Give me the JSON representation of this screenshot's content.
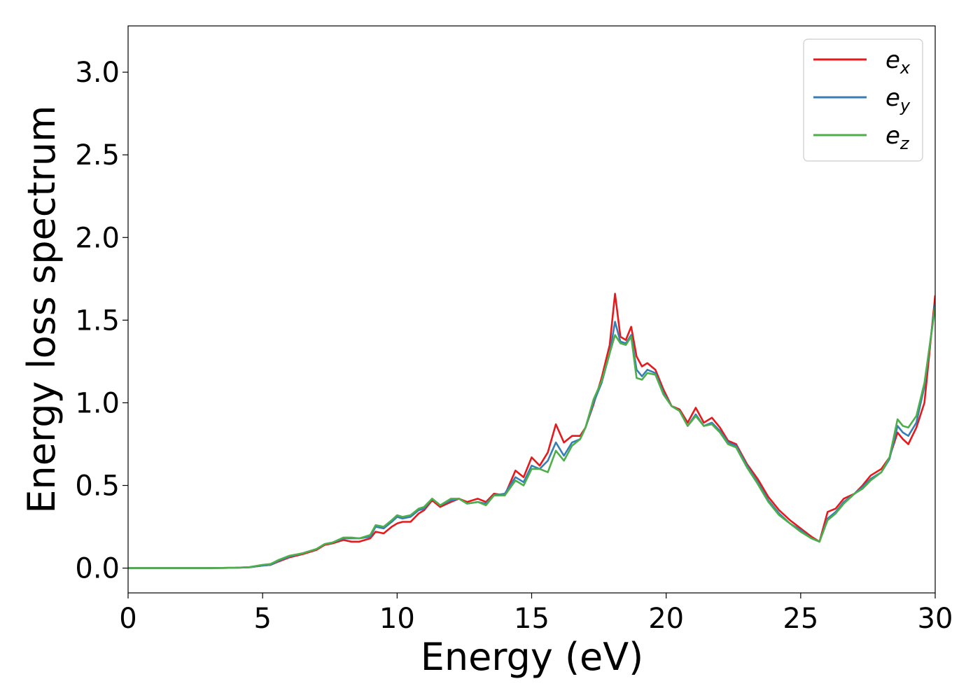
{
  "chart_data": {
    "type": "line",
    "xlabel": "Energy (eV)",
    "ylabel": "Energy loss spectrum",
    "xlim": [
      0,
      30
    ],
    "ylim": [
      -0.15,
      3.28
    ],
    "x_ticks": [
      "0",
      "5",
      "10",
      "15",
      "20",
      "25",
      "30"
    ],
    "y_ticks": [
      "0.0",
      "0.5",
      "1.0",
      "1.5",
      "2.0",
      "2.5",
      "3.0"
    ],
    "grid": false,
    "legend_position": "top-right",
    "x": [
      0,
      1,
      2,
      3,
      4,
      4.5,
      5,
      5.3,
      5.6,
      6,
      6.5,
      7,
      7.3,
      7.6,
      8,
      8.3,
      8.6,
      9,
      9.2,
      9.5,
      9.8,
      10,
      10.2,
      10.5,
      10.8,
      11,
      11.3,
      11.6,
      12,
      12.3,
      12.6,
      13,
      13.3,
      13.6,
      14,
      14.4,
      14.7,
      15,
      15.3,
      15.6,
      15.9,
      16.2,
      16.5,
      16.8,
      17,
      17.3,
      17.6,
      17.9,
      18.1,
      18.3,
      18.5,
      18.7,
      18.9,
      19.1,
      19.3,
      19.6,
      19.9,
      20.2,
      20.5,
      20.8,
      21.1,
      21.4,
      21.7,
      22,
      22.3,
      22.6,
      23,
      23.4,
      23.8,
      24.2,
      24.6,
      25,
      25.4,
      25.7,
      26,
      26.3,
      26.6,
      27,
      27.3,
      27.6,
      28,
      28.3,
      28.6,
      28.8,
      29,
      29.3,
      29.6,
      30
    ],
    "series": [
      {
        "name": "e_x",
        "label_base": "e",
        "label_sub": "x",
        "color": "#e41a1c",
        "values": [
          0,
          0,
          0,
          0,
          0.002,
          0.005,
          0.015,
          0.02,
          0.04,
          0.065,
          0.085,
          0.11,
          0.14,
          0.15,
          0.17,
          0.16,
          0.16,
          0.18,
          0.22,
          0.21,
          0.25,
          0.27,
          0.28,
          0.28,
          0.33,
          0.35,
          0.41,
          0.37,
          0.4,
          0.42,
          0.4,
          0.42,
          0.4,
          0.45,
          0.44,
          0.59,
          0.55,
          0.67,
          0.62,
          0.7,
          0.87,
          0.76,
          0.8,
          0.8,
          0.85,
          0.99,
          1.15,
          1.35,
          1.66,
          1.4,
          1.38,
          1.46,
          1.28,
          1.22,
          1.24,
          1.2,
          1.08,
          0.98,
          0.96,
          0.88,
          0.97,
          0.88,
          0.91,
          0.85,
          0.77,
          0.75,
          0.63,
          0.54,
          0.43,
          0.35,
          0.29,
          0.24,
          0.19,
          0.16,
          0.34,
          0.36,
          0.42,
          0.45,
          0.5,
          0.56,
          0.6,
          0.67,
          0.82,
          0.78,
          0.75,
          0.85,
          1.0,
          1.65
        ]
      },
      {
        "name": "e_y",
        "label_base": "e",
        "label_sub": "y",
        "color": "#377eb8",
        "values": [
          0,
          0,
          0,
          0,
          0.002,
          0.005,
          0.015,
          0.02,
          0.045,
          0.07,
          0.09,
          0.115,
          0.145,
          0.155,
          0.18,
          0.18,
          0.18,
          0.19,
          0.25,
          0.24,
          0.28,
          0.31,
          0.3,
          0.31,
          0.35,
          0.36,
          0.42,
          0.38,
          0.41,
          0.42,
          0.39,
          0.4,
          0.39,
          0.44,
          0.45,
          0.55,
          0.52,
          0.62,
          0.6,
          0.65,
          0.76,
          0.68,
          0.76,
          0.78,
          0.85,
          1.0,
          1.12,
          1.3,
          1.49,
          1.37,
          1.36,
          1.41,
          1.2,
          1.16,
          1.2,
          1.18,
          1.06,
          0.98,
          0.95,
          0.86,
          0.93,
          0.86,
          0.88,
          0.83,
          0.76,
          0.74,
          0.62,
          0.52,
          0.41,
          0.33,
          0.27,
          0.23,
          0.18,
          0.16,
          0.3,
          0.34,
          0.4,
          0.45,
          0.49,
          0.54,
          0.58,
          0.66,
          0.86,
          0.82,
          0.8,
          0.88,
          1.1,
          1.6
        ]
      },
      {
        "name": "e_z",
        "label_base": "e",
        "label_sub": "z",
        "color": "#4daf4a",
        "values": [
          0,
          0,
          0,
          0,
          0.002,
          0.006,
          0.02,
          0.025,
          0.05,
          0.075,
          0.09,
          0.115,
          0.145,
          0.155,
          0.185,
          0.185,
          0.18,
          0.2,
          0.26,
          0.25,
          0.29,
          0.32,
          0.31,
          0.32,
          0.36,
          0.37,
          0.42,
          0.38,
          0.42,
          0.42,
          0.39,
          0.4,
          0.38,
          0.44,
          0.44,
          0.53,
          0.5,
          0.6,
          0.6,
          0.58,
          0.71,
          0.65,
          0.74,
          0.78,
          0.85,
          1.02,
          1.13,
          1.3,
          1.41,
          1.36,
          1.35,
          1.4,
          1.15,
          1.14,
          1.18,
          1.17,
          1.05,
          0.98,
          0.95,
          0.86,
          0.92,
          0.86,
          0.87,
          0.82,
          0.75,
          0.73,
          0.61,
          0.51,
          0.4,
          0.32,
          0.27,
          0.22,
          0.18,
          0.16,
          0.29,
          0.33,
          0.39,
          0.45,
          0.48,
          0.53,
          0.58,
          0.67,
          0.9,
          0.86,
          0.85,
          0.92,
          1.12,
          1.58
        ]
      }
    ]
  }
}
